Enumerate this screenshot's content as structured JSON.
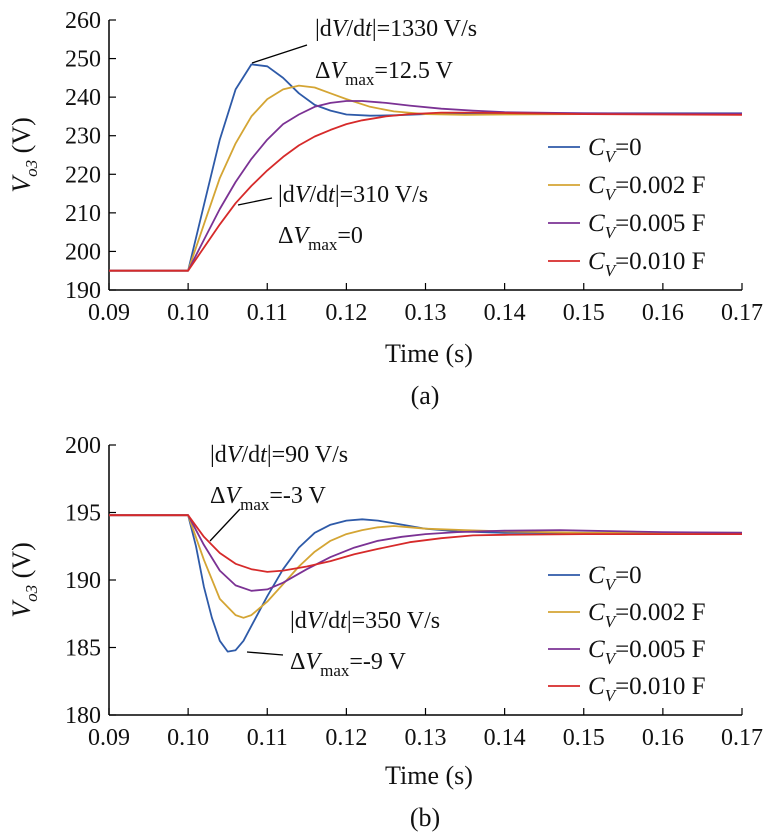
{
  "legend_labels": {
    "cv0": "C_V=0",
    "cv002": "C_V=0.002 F",
    "cv005": "C_V=0.005 F",
    "cv010": "C_V=0.010 F"
  },
  "chart_data": [
    {
      "type": "line",
      "panel": "(a)",
      "caption": "(a)",
      "xlabel": "Time (s)",
      "ylabel": "V_o3 (V)",
      "xlim": [
        0.09,
        0.17
      ],
      "ylim": [
        190,
        260
      ],
      "xticks": [
        "0.09",
        "0.10",
        "0.11",
        "0.12",
        "0.13",
        "0.14",
        "0.15",
        "0.16",
        "0.17"
      ],
      "yticks": [
        "190",
        "200",
        "210",
        "220",
        "230",
        "240",
        "250",
        "260"
      ],
      "grid": false,
      "legend_position": "right",
      "annotations": [
        {
          "line1": "|dV/dt|=1330 V/s",
          "line2": "ΔVmax=12.5 V",
          "target_x": 0.1085,
          "target_y": 248.5
        },
        {
          "line1": "|dV/dt|=310 V/s",
          "line2": "ΔVmax=0",
          "target_x": 0.1072,
          "target_y": 212.5
        }
      ],
      "series": [
        {
          "name": "C_V=0",
          "color": "#2e5aa8",
          "x": [
            0.09,
            0.1,
            0.102,
            0.104,
            0.106,
            0.108,
            0.11,
            0.112,
            0.114,
            0.116,
            0.118,
            0.12,
            0.123,
            0.126,
            0.13,
            0.135,
            0.14,
            0.15,
            0.16,
            0.17
          ],
          "y": [
            195,
            195,
            212,
            229,
            242,
            248.5,
            248,
            245,
            241,
            238,
            236.5,
            235.5,
            235.2,
            235.3,
            235.6,
            235.8,
            235.8,
            235.8,
            235.8,
            235.8
          ]
        },
        {
          "name": "C_V=0.002 F",
          "color": "#d4a534",
          "x": [
            0.09,
            0.1,
            0.102,
            0.104,
            0.106,
            0.108,
            0.11,
            0.112,
            0.114,
            0.116,
            0.118,
            0.12,
            0.123,
            0.126,
            0.13,
            0.135,
            0.14,
            0.15,
            0.16,
            0.17
          ],
          "y": [
            195,
            195,
            207,
            219,
            228,
            235,
            239.5,
            242,
            243,
            242.5,
            241,
            239.5,
            237.5,
            236.3,
            235.6,
            235.4,
            235.5,
            235.6,
            235.6,
            235.6
          ]
        },
        {
          "name": "C_V=0.005 F",
          "color": "#7b3294",
          "x": [
            0.09,
            0.1,
            0.102,
            0.104,
            0.106,
            0.108,
            0.11,
            0.112,
            0.114,
            0.116,
            0.118,
            0.12,
            0.122,
            0.125,
            0.128,
            0.132,
            0.136,
            0.14,
            0.15,
            0.16,
            0.17
          ],
          "y": [
            195,
            195,
            203,
            211,
            218,
            224,
            229,
            233,
            235.5,
            237.5,
            238.5,
            239,
            239,
            238.5,
            237.8,
            237,
            236.5,
            236.1,
            235.8,
            235.7,
            235.7
          ]
        },
        {
          "name": "C_V=0.010 F",
          "color": "#d62a2a",
          "x": [
            0.09,
            0.1,
            0.102,
            0.104,
            0.106,
            0.108,
            0.11,
            0.112,
            0.114,
            0.116,
            0.118,
            0.12,
            0.122,
            0.125,
            0.128,
            0.132,
            0.136,
            0.14,
            0.15,
            0.16,
            0.17
          ],
          "y": [
            195,
            195,
            201,
            207,
            212.5,
            217,
            221,
            224.5,
            227.5,
            229.8,
            231.5,
            233,
            234,
            235,
            235.6,
            236,
            236,
            235.9,
            235.6,
            235.5,
            235.4
          ]
        }
      ]
    },
    {
      "type": "line",
      "panel": "(b)",
      "caption": "(b)",
      "xlabel": "Time (s)",
      "ylabel": "V_o3 (V)",
      "xlim": [
        0.09,
        0.17
      ],
      "ylim": [
        180,
        200
      ],
      "xticks": [
        "0.09",
        "0.10",
        "0.11",
        "0.12",
        "0.13",
        "0.14",
        "0.15",
        "0.16",
        "0.17"
      ],
      "yticks": [
        "180",
        "185",
        "190",
        "195",
        "200"
      ],
      "grid": false,
      "legend_position": "right",
      "annotations": [
        {
          "line1": "|dV/dt|=90 V/s",
          "line2": "ΔVmax=-3 V",
          "target_x": 0.1028,
          "target_y": 192.5
        },
        {
          "line1": "|dV/dt|=350 V/s",
          "line2": "ΔVmax=-9 V",
          "target_x": 0.1055,
          "target_y": 184.7
        }
      ],
      "series": [
        {
          "name": "C_V=0",
          "color": "#2e5aa8",
          "x": [
            0.09,
            0.1,
            0.101,
            0.102,
            0.103,
            0.104,
            0.105,
            0.106,
            0.107,
            0.108,
            0.11,
            0.112,
            0.114,
            0.116,
            0.118,
            0.12,
            0.122,
            0.124,
            0.126,
            0.128,
            0.13,
            0.134,
            0.14,
            0.15,
            0.16,
            0.17
          ],
          "y": [
            194.8,
            194.8,
            192.5,
            189.5,
            187.2,
            185.5,
            184.7,
            184.8,
            185.5,
            186.6,
            188.8,
            190.8,
            192.4,
            193.5,
            194.1,
            194.4,
            194.5,
            194.4,
            194.2,
            194,
            193.8,
            193.6,
            193.5,
            193.5,
            193.5,
            193.5
          ]
        },
        {
          "name": "C_V=0.002 F",
          "color": "#d4a534",
          "x": [
            0.09,
            0.1,
            0.102,
            0.104,
            0.106,
            0.107,
            0.108,
            0.11,
            0.112,
            0.114,
            0.116,
            0.118,
            0.12,
            0.122,
            0.124,
            0.126,
            0.128,
            0.13,
            0.135,
            0.14,
            0.15,
            0.16,
            0.17
          ],
          "y": [
            194.8,
            194.8,
            191.5,
            188.6,
            187.4,
            187.2,
            187.4,
            188.4,
            189.7,
            191,
            192.1,
            192.9,
            193.4,
            193.7,
            193.9,
            194,
            193.9,
            193.8,
            193.7,
            193.6,
            193.5,
            193.5,
            193.5
          ]
        },
        {
          "name": "C_V=0.005 F",
          "color": "#7b3294",
          "x": [
            0.09,
            0.1,
            0.102,
            0.104,
            0.106,
            0.108,
            0.11,
            0.112,
            0.115,
            0.118,
            0.121,
            0.124,
            0.127,
            0.13,
            0.134,
            0.14,
            0.147,
            0.155,
            0.16,
            0.17
          ],
          "y": [
            194.8,
            194.8,
            192.6,
            190.7,
            189.6,
            189.2,
            189.3,
            189.8,
            190.8,
            191.7,
            192.4,
            192.9,
            193.2,
            193.4,
            193.55,
            193.65,
            193.7,
            193.6,
            193.55,
            193.5
          ]
        },
        {
          "name": "C_V=0.010 F",
          "color": "#d62a2a",
          "x": [
            0.09,
            0.1,
            0.102,
            0.104,
            0.106,
            0.108,
            0.11,
            0.112,
            0.115,
            0.118,
            0.121,
            0.124,
            0.128,
            0.132,
            0.136,
            0.14,
            0.15,
            0.16,
            0.17
          ],
          "y": [
            194.8,
            194.8,
            193.2,
            192,
            191.2,
            190.8,
            190.6,
            190.7,
            191,
            191.4,
            191.9,
            192.3,
            192.8,
            193.1,
            193.3,
            193.35,
            193.4,
            193.4,
            193.4
          ]
        }
      ]
    }
  ]
}
